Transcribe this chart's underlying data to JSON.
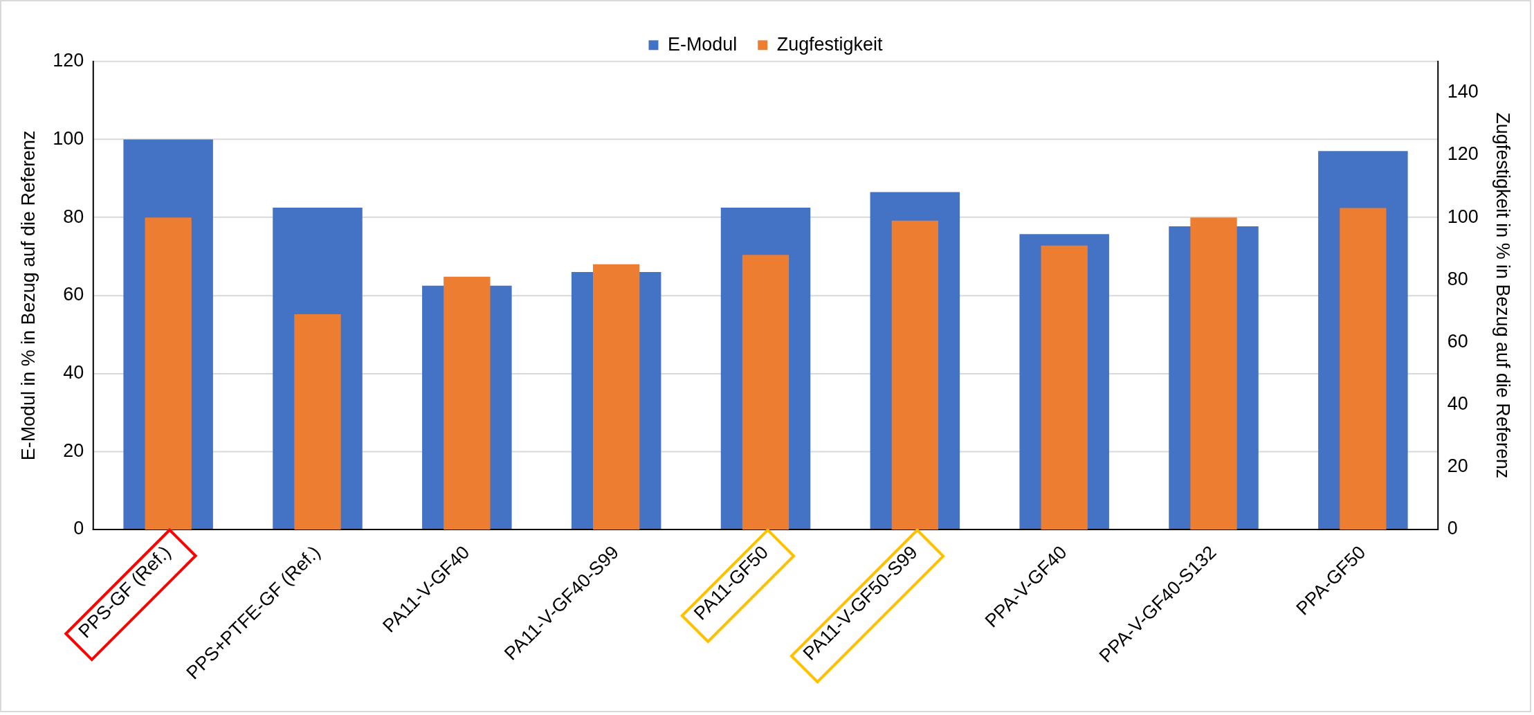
{
  "chart_data": {
    "type": "bar",
    "categories": [
      "PPS-GF (Ref.)",
      "PPS+PTFE-GF (Ref.)",
      "PA11-V-GF40",
      "PA11-V-GF40-S99",
      "PA11-GF50",
      "PA11-V-GF50-S99",
      "PPA-V-GF40",
      "PPA-V-GF40-S132",
      "PPA-GF50"
    ],
    "series": [
      {
        "name": "E-Modul",
        "color": "#4472c4",
        "values": [
          100,
          82.5,
          62.5,
          66,
          82.5,
          86.5,
          75.7,
          77.7,
          97
        ]
      },
      {
        "name": "Zugfestigkeit",
        "color": "#ed7d31",
        "axis": "y2",
        "values": [
          100,
          69,
          81,
          85,
          88,
          99,
          91,
          100,
          103
        ]
      }
    ],
    "ylabel": "E-Modul in % in Bezug auf die Referenz",
    "y2label": "Zugfestigkeit in % in Bezug auf die Referenz",
    "ylim": [
      0,
      120
    ],
    "yticks": [
      0,
      20,
      40,
      60,
      80,
      100,
      120
    ],
    "y2lim": [
      0,
      150
    ],
    "y2ticks": [
      0,
      20,
      40,
      60,
      80,
      100,
      120,
      140
    ],
    "grid": "y",
    "legend": "top"
  }
}
